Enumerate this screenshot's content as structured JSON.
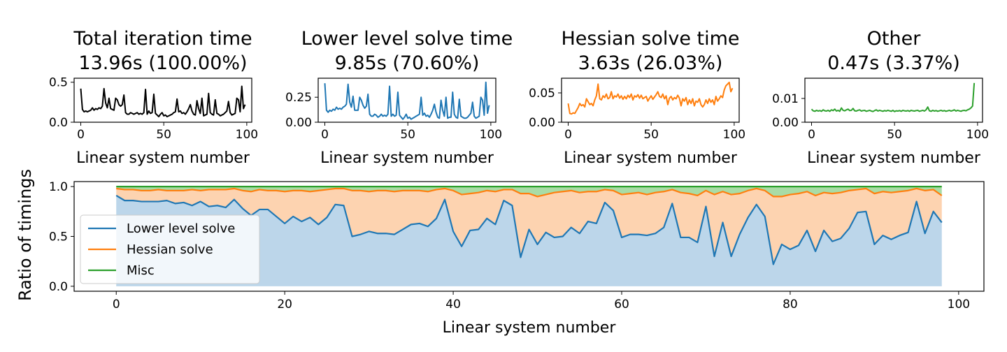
{
  "chart_data": [
    {
      "type": "line",
      "title_line1": "Total iteration time",
      "title_line2": "13.96s  (100.00%)",
      "xlabel": "Linear system number",
      "ylabel": "",
      "xlim": [
        -4,
        103
      ],
      "ylim": [
        0,
        0.55
      ],
      "xticks": [
        0,
        50,
        100
      ],
      "yticks": [
        0.0,
        0.5
      ],
      "ytick_labels": [
        "0.0",
        "0.5"
      ],
      "color": "#000000",
      "values": [
        0.42,
        0.16,
        0.13,
        0.14,
        0.13,
        0.14,
        0.15,
        0.18,
        0.15,
        0.17,
        0.16,
        0.18,
        0.17,
        0.2,
        0.42,
        0.24,
        0.18,
        0.3,
        0.17,
        0.16,
        0.15,
        0.3,
        0.28,
        0.22,
        0.2,
        0.22,
        0.34,
        0.12,
        0.1,
        0.1,
        0.12,
        0.11,
        0.1,
        0.11,
        0.12,
        0.1,
        0.11,
        0.1,
        0.12,
        0.41,
        0.1,
        0.14,
        0.11,
        0.12,
        0.35,
        0.11,
        0.09,
        0.07,
        0.1,
        0.12,
        0.08,
        0.09,
        0.07,
        0.08,
        0.09,
        0.1,
        0.12,
        0.13,
        0.29,
        0.13,
        0.14,
        0.11,
        0.12,
        0.1,
        0.13,
        0.17,
        0.22,
        0.14,
        0.1,
        0.09,
        0.27,
        0.17,
        0.11,
        0.3,
        0.08,
        0.09,
        0.1,
        0.36,
        0.12,
        0.1,
        0.09,
        0.28,
        0.11,
        0.1,
        0.08,
        0.09,
        0.1,
        0.12,
        0.14,
        0.26,
        0.12,
        0.09,
        0.1,
        0.11,
        0.3,
        0.28,
        0.13,
        0.45,
        0.17,
        0.22
      ]
    },
    {
      "type": "line",
      "title_line1": "Lower level solve time",
      "title_line2": "9.85s  (70.60%)",
      "xlabel": "Linear system number",
      "ylabel": "",
      "xlim": [
        -4,
        103
      ],
      "ylim": [
        0,
        0.44
      ],
      "xticks": [
        0,
        50,
        100
      ],
      "yticks": [
        0.0,
        0.25
      ],
      "ytick_labels": [
        "0.00",
        "0.25"
      ],
      "color": "#1f77b4",
      "values": [
        0.39,
        0.12,
        0.1,
        0.12,
        0.11,
        0.13,
        0.12,
        0.15,
        0.13,
        0.14,
        0.13,
        0.15,
        0.16,
        0.18,
        0.38,
        0.2,
        0.15,
        0.26,
        0.12,
        0.12,
        0.12,
        0.25,
        0.22,
        0.17,
        0.14,
        0.16,
        0.28,
        0.08,
        0.06,
        0.06,
        0.08,
        0.07,
        0.05,
        0.06,
        0.08,
        0.06,
        0.07,
        0.06,
        0.08,
        0.36,
        0.06,
        0.08,
        0.06,
        0.07,
        0.3,
        0.07,
        0.05,
        0.03,
        0.05,
        0.08,
        0.04,
        0.05,
        0.03,
        0.04,
        0.05,
        0.06,
        0.07,
        0.08,
        0.25,
        0.07,
        0.09,
        0.06,
        0.07,
        0.05,
        0.08,
        0.12,
        0.18,
        0.1,
        0.05,
        0.04,
        0.22,
        0.12,
        0.06,
        0.25,
        0.04,
        0.05,
        0.05,
        0.3,
        0.08,
        0.05,
        0.04,
        0.23,
        0.06,
        0.05,
        0.04,
        0.04,
        0.05,
        0.07,
        0.09,
        0.2,
        0.06,
        0.04,
        0.05,
        0.06,
        0.25,
        0.22,
        0.07,
        0.4,
        0.09,
        0.17
      ]
    },
    {
      "type": "line",
      "title_line1": "Hessian solve time",
      "title_line2": "3.63s  (26.03%)",
      "xlabel": "Linear system number",
      "ylabel": "",
      "xlim": [
        -4,
        103
      ],
      "ylim": [
        0,
        0.075
      ],
      "xticks": [
        0,
        50,
        100
      ],
      "yticks": [
        0.0,
        0.05
      ],
      "ytick_labels": [
        "0.00",
        "0.05"
      ],
      "color": "#ff7f0e",
      "values": [
        0.032,
        0.015,
        0.014,
        0.016,
        0.015,
        0.02,
        0.025,
        0.032,
        0.028,
        0.03,
        0.026,
        0.04,
        0.035,
        0.03,
        0.032,
        0.028,
        0.038,
        0.045,
        0.065,
        0.04,
        0.038,
        0.045,
        0.042,
        0.048,
        0.04,
        0.042,
        0.052,
        0.04,
        0.045,
        0.043,
        0.048,
        0.041,
        0.045,
        0.039,
        0.044,
        0.04,
        0.046,
        0.042,
        0.048,
        0.038,
        0.045,
        0.043,
        0.047,
        0.041,
        0.046,
        0.04,
        0.042,
        0.044,
        0.036,
        0.041,
        0.045,
        0.039,
        0.043,
        0.047,
        0.052,
        0.044,
        0.042,
        0.048,
        0.04,
        0.045,
        0.03,
        0.041,
        0.044,
        0.038,
        0.042,
        0.04,
        0.046,
        0.041,
        0.028,
        0.04,
        0.036,
        0.042,
        0.03,
        0.038,
        0.032,
        0.04,
        0.028,
        0.036,
        0.034,
        0.04,
        0.03,
        0.026,
        0.03,
        0.038,
        0.032,
        0.04,
        0.034,
        0.038,
        0.03,
        0.044,
        0.036,
        0.04,
        0.045,
        0.042,
        0.055,
        0.062,
        0.065,
        0.068,
        0.052,
        0.058
      ]
    },
    {
      "type": "line",
      "title_line1": "Other",
      "title_line2": "0.47s  (3.37%)",
      "xlabel": "Linear system number",
      "ylabel": "",
      "xlim": [
        -4,
        103
      ],
      "ylim": [
        0,
        0.0185
      ],
      "xticks": [
        0,
        50,
        100
      ],
      "yticks": [
        0.0,
        0.01
      ],
      "ytick_labels": [
        "0.00",
        "0.01"
      ],
      "color": "#2ca02c",
      "values": [
        0.0055,
        0.0048,
        0.0046,
        0.005,
        0.0047,
        0.0049,
        0.0046,
        0.0052,
        0.0048,
        0.0047,
        0.005,
        0.0046,
        0.0052,
        0.0049,
        0.0055,
        0.0047,
        0.005,
        0.0046,
        0.006,
        0.005,
        0.0048,
        0.0052,
        0.0055,
        0.0049,
        0.005,
        0.0058,
        0.0048,
        0.0047,
        0.005,
        0.0052,
        0.0047,
        0.0049,
        0.005,
        0.0046,
        0.0048,
        0.005,
        0.0047,
        0.0045,
        0.0049,
        0.0052,
        0.0047,
        0.005,
        0.0048,
        0.0046,
        0.0049,
        0.0047,
        0.005,
        0.0048,
        0.0046,
        0.005,
        0.0045,
        0.0048,
        0.0047,
        0.0049,
        0.0046,
        0.005,
        0.0048,
        0.0047,
        0.0049,
        0.0046,
        0.005,
        0.0048,
        0.0047,
        0.0049,
        0.005,
        0.0046,
        0.0048,
        0.005,
        0.0047,
        0.0052,
        0.0064,
        0.0048,
        0.0046,
        0.005,
        0.0047,
        0.0049,
        0.0046,
        0.0048,
        0.005,
        0.0047,
        0.0049,
        0.0046,
        0.0048,
        0.005,
        0.0047,
        0.0049,
        0.0052,
        0.0047,
        0.005,
        0.0048,
        0.0046,
        0.0049,
        0.005,
        0.0048,
        0.0052,
        0.0055,
        0.006,
        0.0068,
        0.0165
      ]
    },
    {
      "type": "area",
      "title": "",
      "xlabel": "Linear system number",
      "ylabel": "Ratio of timings",
      "xlim": [
        -5,
        103
      ],
      "ylim": [
        -0.05,
        1.05
      ],
      "xticks": [
        0,
        20,
        40,
        60,
        80,
        100
      ],
      "yticks": [
        0.0,
        0.5,
        1.0
      ],
      "ytick_labels": [
        "0.0",
        "0.5",
        "1.0"
      ],
      "legend_position": "lower-left",
      "series": [
        {
          "name": "Lower level solve",
          "color": "#1f77b4",
          "fill": "#bcd6ea",
          "values": [
            0.91,
            0.86,
            0.86,
            0.85,
            0.85,
            0.85,
            0.86,
            0.83,
            0.84,
            0.81,
            0.85,
            0.8,
            0.81,
            0.79,
            0.87,
            0.78,
            0.71,
            0.77,
            0.77,
            0.7,
            0.63,
            0.7,
            0.65,
            0.69,
            0.62,
            0.69,
            0.82,
            0.81,
            0.5,
            0.52,
            0.55,
            0.53,
            0.53,
            0.52,
            0.57,
            0.62,
            0.63,
            0.6,
            0.68,
            0.87,
            0.55,
            0.4,
            0.56,
            0.57,
            0.68,
            0.62,
            0.86,
            0.81,
            0.29,
            0.57,
            0.42,
            0.54,
            0.49,
            0.5,
            0.59,
            0.53,
            0.65,
            0.63,
            0.84,
            0.76,
            0.49,
            0.52,
            0.52,
            0.51,
            0.53,
            0.59,
            0.83,
            0.49,
            0.49,
            0.44,
            0.8,
            0.3,
            0.64,
            0.3,
            0.52,
            0.69,
            0.82,
            0.7,
            0.22,
            0.42,
            0.37,
            0.41,
            0.56,
            0.35,
            0.56,
            0.45,
            0.48,
            0.58,
            0.74,
            0.75,
            0.42,
            0.51,
            0.47,
            0.51,
            0.54,
            0.85,
            0.53,
            0.75,
            0.64
          ]
        },
        {
          "name": "Hessian solve",
          "color": "#ff7f0e",
          "fill": "#fdd3b0",
          "values": [
            0.98,
            0.97,
            0.97,
            0.96,
            0.96,
            0.97,
            0.96,
            0.96,
            0.96,
            0.97,
            0.96,
            0.97,
            0.97,
            0.97,
            0.98,
            0.96,
            0.95,
            0.97,
            0.96,
            0.96,
            0.95,
            0.96,
            0.96,
            0.95,
            0.96,
            0.97,
            0.98,
            0.98,
            0.96,
            0.96,
            0.95,
            0.96,
            0.96,
            0.95,
            0.96,
            0.96,
            0.96,
            0.95,
            0.97,
            0.98,
            0.96,
            0.92,
            0.93,
            0.94,
            0.96,
            0.95,
            0.97,
            0.97,
            0.93,
            0.93,
            0.9,
            0.92,
            0.94,
            0.95,
            0.96,
            0.94,
            0.95,
            0.95,
            0.97,
            0.96,
            0.92,
            0.93,
            0.94,
            0.92,
            0.94,
            0.95,
            0.97,
            0.94,
            0.93,
            0.91,
            0.96,
            0.92,
            0.95,
            0.92,
            0.93,
            0.96,
            0.98,
            0.96,
            0.9,
            0.9,
            0.92,
            0.93,
            0.95,
            0.91,
            0.94,
            0.93,
            0.94,
            0.96,
            0.97,
            0.98,
            0.93,
            0.95,
            0.94,
            0.95,
            0.96,
            0.98,
            0.96,
            0.97,
            0.91
          ]
        },
        {
          "name": "Misc",
          "color": "#2ca02c",
          "fill": "#a9dca6",
          "values": [
            1.0,
            1.0,
            1.0,
            1.0,
            1.0,
            1.0,
            1.0,
            1.0,
            1.0,
            1.0,
            1.0,
            1.0,
            1.0,
            1.0,
            1.0,
            1.0,
            1.0,
            1.0,
            1.0,
            1.0,
            1.0,
            1.0,
            1.0,
            1.0,
            1.0,
            1.0,
            1.0,
            1.0,
            1.0,
            1.0,
            1.0,
            1.0,
            1.0,
            1.0,
            1.0,
            1.0,
            1.0,
            1.0,
            1.0,
            1.0,
            1.0,
            1.0,
            1.0,
            1.0,
            1.0,
            1.0,
            1.0,
            1.0,
            1.0,
            1.0,
            1.0,
            1.0,
            1.0,
            1.0,
            1.0,
            1.0,
            1.0,
            1.0,
            1.0,
            1.0,
            1.0,
            1.0,
            1.0,
            1.0,
            1.0,
            1.0,
            1.0,
            1.0,
            1.0,
            1.0,
            1.0,
            1.0,
            1.0,
            1.0,
            1.0,
            1.0,
            1.0,
            1.0,
            1.0,
            1.0,
            1.0,
            1.0,
            1.0,
            1.0,
            1.0,
            1.0,
            1.0,
            1.0,
            1.0,
            1.0,
            1.0,
            1.0,
            1.0,
            1.0,
            1.0,
            1.0,
            1.0,
            1.0,
            1.0
          ]
        }
      ]
    }
  ]
}
